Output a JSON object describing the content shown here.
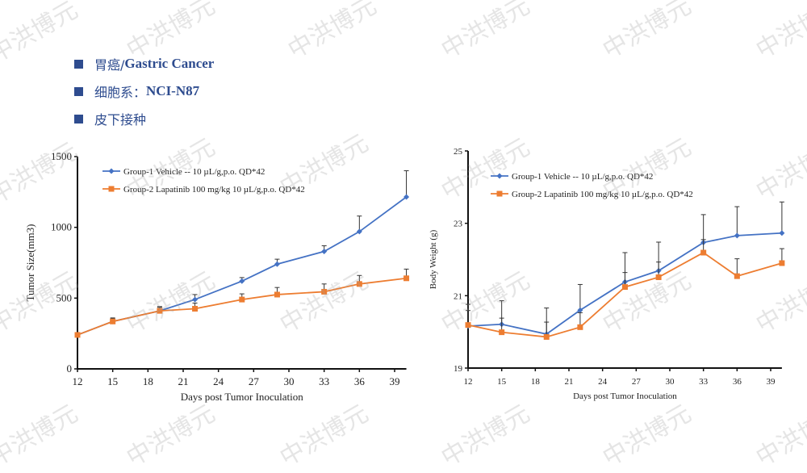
{
  "watermark": "中洪博元",
  "bullets": [
    {
      "zh": "胃癌/",
      "en": "Gastric Cancer"
    },
    {
      "zh": "细胞系：",
      "en": "NCI-N87"
    },
    {
      "zh": "皮下接种",
      "en": ""
    }
  ],
  "colors": {
    "bullet": "#2e4c8f",
    "vehicle": "#4472c4",
    "lapatinib": "#ed7d31"
  },
  "chart_data": [
    {
      "type": "line",
      "xlabel": "Days post Tumor Inoculation",
      "ylabel": "Tumor Size(mm3)",
      "xlim": [
        12,
        40
      ],
      "ylim": [
        0,
        1500
      ],
      "xticks": [
        "12",
        "15",
        "18",
        "21",
        "24",
        "27",
        "30",
        "33",
        "36",
        "39"
      ],
      "yticks": [
        "0",
        "500",
        "1000",
        "1500"
      ],
      "legend": "top-left",
      "x": [
        12,
        15,
        19,
        22,
        26,
        29,
        33,
        36,
        40
      ],
      "series": [
        {
          "name": "Group-1 Vehicle -- 10 µL/g,p.o. QD*42",
          "marker": "diamond",
          "values": [
            240,
            335,
            410,
            490,
            620,
            740,
            830,
            970,
            1215
          ],
          "error": [
            0,
            25,
            30,
            35,
            25,
            35,
            40,
            110,
            185
          ]
        },
        {
          "name": "Group-2 Lapatinib 100 mg/kg 10 µL/g,p.o. QD*42",
          "marker": "square",
          "values": [
            240,
            335,
            410,
            425,
            490,
            525,
            545,
            600,
            640
          ],
          "error": [
            0,
            20,
            25,
            40,
            40,
            50,
            55,
            60,
            65
          ]
        }
      ]
    },
    {
      "type": "line",
      "xlabel": "Days post Tumor Inoculation",
      "ylabel": "Body Weight (g)",
      "xlim": [
        12,
        40
      ],
      "ylim": [
        19,
        25
      ],
      "xticks": [
        "12",
        "15",
        "18",
        "21",
        "24",
        "27",
        "30",
        "33",
        "36",
        "39"
      ],
      "yticks": [
        "19",
        "21",
        "23",
        "25"
      ],
      "legend": "top-left",
      "x": [
        12,
        15,
        19,
        22,
        26,
        29,
        33,
        36,
        40
      ],
      "series": [
        {
          "name": "Group-1 Vehicle -- 10 µL/g,p.o. QD*42",
          "marker": "diamond",
          "values": [
            20.16,
            20.21,
            19.94,
            20.6,
            21.38,
            21.69,
            22.47,
            22.66,
            22.73
          ],
          "error": [
            0.6,
            0.65,
            0.72,
            0.71,
            0.81,
            0.79,
            0.77,
            0.8,
            0.86
          ]
        },
        {
          "name": "Group-2 Lapatinib 100 mg/kg 10 µL/g,p.o. QD*42",
          "marker": "square",
          "values": [
            20.19,
            19.99,
            19.86,
            20.13,
            21.24,
            21.51,
            22.19,
            21.54,
            21.9
          ],
          "error": [
            0.4,
            0.39,
            0.41,
            0.4,
            0.4,
            0.42,
            0.36,
            0.48,
            0.4
          ]
        }
      ]
    }
  ]
}
